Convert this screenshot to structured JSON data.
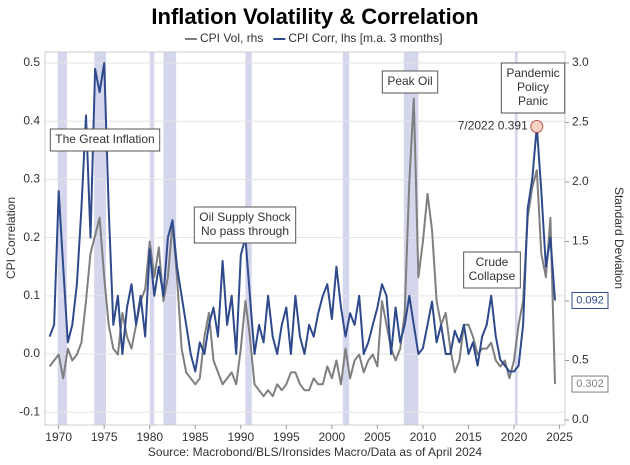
{
  "chart_data": {
    "type": "line",
    "title": "Inflation Volatility & Correlation",
    "source": "Source: Macrobond/BLS/Ironsides Macro/Data as of April 2024",
    "ylabel": "CPI Correlation",
    "y2label": "Standard Deviation",
    "x": [
      1969,
      1969.5,
      1970,
      1970.5,
      1971,
      1971.5,
      1972,
      1972.5,
      1973,
      1973.5,
      1974,
      1974.5,
      1975,
      1975.5,
      1976,
      1976.5,
      1977,
      1977.5,
      1978,
      1978.5,
      1979,
      1979.5,
      1980,
      1980.5,
      1981,
      1981.5,
      1982,
      1982.5,
      1983,
      1983.5,
      1984,
      1984.5,
      1985,
      1985.5,
      1986,
      1986.5,
      1987,
      1987.5,
      1988,
      1988.5,
      1989,
      1989.5,
      1990,
      1990.5,
      1991,
      1991.5,
      1992,
      1992.5,
      1993,
      1993.5,
      1994,
      1994.5,
      1995,
      1995.5,
      1996,
      1996.5,
      1997,
      1997.5,
      1998,
      1998.5,
      1999,
      1999.5,
      2000,
      2000.5,
      2001,
      2001.5,
      2002,
      2002.5,
      2003,
      2003.5,
      2004,
      2004.5,
      2005,
      2005.5,
      2006,
      2006.5,
      2007,
      2007.5,
      2008,
      2008.5,
      2009,
      2009.5,
      2010,
      2010.5,
      2011,
      2011.5,
      2012,
      2012.5,
      2013,
      2013.5,
      2014,
      2014.5,
      2015,
      2015.5,
      2016,
      2016.5,
      2017,
      2017.5,
      2018,
      2018.5,
      2019,
      2019.5,
      2020,
      2020.5,
      2021,
      2021.5,
      2022,
      2022.5,
      2023,
      2023.5,
      2024,
      2024.5
    ],
    "series": [
      {
        "name": "CPI Vol, rhs",
        "color": "#7f7f7f",
        "axis": "y2",
        "end_label": "0.302",
        "values": [
          0.45,
          0.5,
          0.55,
          0.35,
          0.6,
          0.5,
          0.55,
          0.65,
          1.0,
          1.4,
          1.55,
          1.7,
          1.2,
          0.8,
          0.6,
          0.55,
          0.9,
          0.7,
          0.6,
          0.8,
          1.0,
          1.1,
          1.5,
          1.2,
          1.45,
          1.0,
          1.2,
          1.65,
          1.2,
          0.6,
          0.4,
          0.35,
          0.3,
          0.35,
          0.7,
          0.9,
          0.5,
          0.4,
          0.3,
          0.35,
          0.4,
          0.3,
          0.6,
          1.0,
          0.7,
          0.3,
          0.25,
          0.2,
          0.25,
          0.2,
          0.3,
          0.25,
          0.3,
          0.4,
          0.4,
          0.3,
          0.25,
          0.25,
          0.35,
          0.3,
          0.3,
          0.45,
          0.35,
          0.5,
          0.3,
          0.6,
          0.35,
          0.5,
          0.55,
          0.4,
          0.5,
          0.55,
          0.45,
          1.0,
          0.8,
          0.6,
          0.5,
          0.6,
          0.9,
          2.0,
          2.7,
          1.2,
          1.5,
          1.9,
          1.6,
          1.0,
          0.8,
          0.9,
          0.6,
          0.4,
          0.5,
          0.8,
          0.8,
          0.7,
          0.55,
          0.6,
          0.6,
          0.65,
          0.5,
          0.45,
          0.5,
          0.35,
          0.5,
          0.8,
          1.0,
          1.7,
          1.95,
          2.1,
          1.4,
          1.2,
          1.7,
          0.302
        ]
      },
      {
        "name": "CPI Corr, lhs [m.a. 3 months]",
        "color": "#2e4a8c",
        "end_label": "0.092",
        "values": [
          0.03,
          0.05,
          0.28,
          0.15,
          0.02,
          0.05,
          0.12,
          0.25,
          0.41,
          0.2,
          0.49,
          0.45,
          0.5,
          0.25,
          0.05,
          0.1,
          0.0,
          0.08,
          0.12,
          0.05,
          0.1,
          0.03,
          0.18,
          0.1,
          0.15,
          0.1,
          0.2,
          0.23,
          0.15,
          0.1,
          0.05,
          0.0,
          -0.03,
          0.02,
          0.0,
          0.05,
          0.08,
          0.03,
          0.16,
          0.05,
          0.1,
          0.0,
          0.17,
          0.2,
          0.1,
          0.0,
          0.05,
          0.02,
          0.1,
          0.03,
          0.0,
          0.05,
          0.08,
          0.0,
          0.1,
          0.03,
          0.0,
          0.05,
          0.03,
          0.07,
          0.1,
          0.12,
          0.06,
          0.15,
          0.08,
          0.03,
          0.07,
          0.05,
          0.1,
          0.0,
          0.02,
          0.05,
          0.08,
          0.12,
          0.1,
          0.0,
          0.08,
          0.02,
          0.05,
          0.1,
          0.05,
          0.0,
          0.01,
          0.05,
          0.09,
          0.02,
          0.05,
          0.0,
          0.0,
          0.04,
          0.02,
          0.05,
          0.0,
          0.02,
          -0.02,
          0.03,
          0.05,
          0.1,
          0.03,
          -0.01,
          -0.02,
          -0.03,
          -0.03,
          -0.02,
          0.05,
          0.25,
          0.3,
          0.391,
          0.28,
          0.15,
          0.2,
          0.092
        ]
      }
    ],
    "xlim": [
      1968.5,
      2025.6
    ],
    "xticks": [
      1970,
      1975,
      1980,
      1985,
      1990,
      1995,
      2000,
      2005,
      2010,
      2015,
      2020,
      2025
    ],
    "ylim": [
      -0.122,
      0.519
    ],
    "yticks": [
      -0.1,
      {
        "value": 0,
        "label": "0.0"
      },
      0.1,
      0.2,
      0.3,
      0.4,
      0.5
    ],
    "y2lim": [
      -0.042,
      3.092
    ],
    "y2ticks": [
      {
        "value": 0,
        "label": "0.0"
      },
      0.5,
      {
        "value": 1,
        "label": "1.0"
      },
      1.5,
      {
        "value": 2,
        "label": "2.0"
      },
      2.5,
      {
        "value": 3,
        "label": "3.0"
      }
    ],
    "grid": true,
    "shaded_periods": [
      [
        1969.9,
        1970.9
      ],
      [
        1973.9,
        1975.2
      ],
      [
        1980.0,
        1980.5
      ],
      [
        1981.5,
        1982.9
      ],
      [
        1990.5,
        1991.2
      ],
      [
        2001.2,
        2001.9
      ],
      [
        2007.9,
        2009.5
      ],
      [
        2020.1,
        2020.4
      ]
    ],
    "shade_color": "#d4d6ec",
    "annotations": [
      {
        "lines": [
          "The Great Inflation"
        ]
      },
      {
        "lines": [
          "Oil Supply Shock",
          "No pass through"
        ]
      },
      {
        "lines": [
          "Peak Oil"
        ]
      },
      {
        "lines": [
          "Crude",
          "Collapse"
        ]
      },
      {
        "lines": [
          "Pandemic",
          "Policy",
          "Panic"
        ]
      }
    ],
    "highlight": {
      "text": "7/2022 0.391",
      "x": 2022.5,
      "y": 0.391
    }
  }
}
